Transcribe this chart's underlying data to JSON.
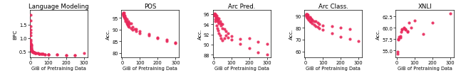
{
  "panels": [
    {
      "title": "Language Modeling",
      "ylabel": "BPC",
      "xlabel": "GiB of Pretraining Data",
      "xlim": [
        -5,
        320
      ],
      "ylim": [
        0.28,
        2.05
      ],
      "yticks": [
        0.5,
        1.0,
        1.5
      ],
      "xticks": [
        0,
        100,
        200,
        300
      ],
      "x": [
        1,
        1,
        1,
        1,
        2,
        2,
        3,
        4,
        5,
        6,
        8,
        10,
        12,
        15,
        20,
        25,
        30,
        40,
        50,
        60,
        70,
        80,
        100,
        150,
        200,
        250,
        300,
        2,
        3,
        5,
        7,
        10,
        15,
        20,
        30,
        40,
        50,
        60,
        80,
        100,
        150,
        200,
        250,
        1,
        1,
        2,
        3,
        5,
        8,
        12,
        20,
        30,
        50,
        70,
        100
      ],
      "y": [
        1.85,
        1.65,
        1.45,
        1.2,
        0.95,
        0.82,
        0.72,
        0.63,
        0.58,
        0.54,
        0.51,
        0.49,
        0.48,
        0.47,
        0.46,
        0.45,
        0.44,
        0.43,
        0.42,
        0.41,
        0.41,
        0.4,
        0.39,
        0.38,
        0.37,
        0.37,
        0.45,
        0.78,
        0.68,
        0.55,
        0.52,
        0.5,
        0.47,
        0.46,
        0.44,
        0.43,
        0.42,
        0.41,
        0.4,
        0.39,
        0.38,
        0.37,
        0.37,
        1.1,
        1.3,
        0.88,
        0.75,
        0.6,
        0.53,
        0.49,
        0.46,
        0.44,
        0.42,
        0.41,
        0.4
      ]
    },
    {
      "title": "POS",
      "ylabel": "Acc.",
      "xlabel": "GiB of Pretraining Data",
      "xlim": [
        -5,
        320
      ],
      "ylim": [
        78,
        98.5
      ],
      "yticks": [
        80,
        85,
        90,
        95
      ],
      "xticks": [
        0,
        100,
        200,
        300
      ],
      "x": [
        5,
        5,
        5,
        8,
        8,
        10,
        10,
        12,
        15,
        15,
        20,
        20,
        25,
        25,
        30,
        35,
        40,
        40,
        50,
        60,
        70,
        80,
        100,
        150,
        200,
        250,
        300,
        5,
        8,
        10,
        15,
        20,
        25,
        30,
        35,
        40,
        50,
        60,
        80,
        100,
        150,
        200,
        250,
        300
      ],
      "y": [
        97.2,
        96.8,
        96.3,
        97.0,
        96.6,
        97.1,
        96.2,
        95.8,
        95.3,
        96.1,
        95.1,
        94.2,
        94.6,
        93.2,
        92.3,
        93.6,
        93.1,
        92.2,
        92.6,
        91.2,
        90.3,
        90.1,
        89.2,
        88.1,
        86.2,
        85.1,
        84.0,
        96.5,
        96.0,
        95.5,
        94.8,
        93.5,
        92.8,
        92.0,
        91.5,
        91.0,
        90.5,
        89.8,
        89.2,
        88.5,
        87.5,
        86.5,
        85.5,
        84.5
      ]
    },
    {
      "title": "Arc Pred.",
      "ylabel": "Acc.",
      "xlabel": "GiB of Pretraining Data",
      "xlim": [
        -5,
        320
      ],
      "ylim": [
        87.5,
        96.8
      ],
      "yticks": [
        88,
        90,
        92,
        94,
        96
      ],
      "xticks": [
        0,
        100,
        200,
        300
      ],
      "x": [
        5,
        5,
        8,
        8,
        10,
        10,
        12,
        15,
        15,
        20,
        20,
        25,
        25,
        30,
        30,
        35,
        40,
        40,
        50,
        50,
        60,
        70,
        80,
        100,
        150,
        200,
        250,
        300,
        5,
        8,
        10,
        15,
        20,
        25,
        30,
        35,
        40,
        50,
        60,
        70,
        80,
        100,
        150,
        200,
        250,
        300
      ],
      "y": [
        96.1,
        95.8,
        95.9,
        95.6,
        96.0,
        95.7,
        95.4,
        95.1,
        95.6,
        95.2,
        94.7,
        94.9,
        94.4,
        94.1,
        95.1,
        94.6,
        94.2,
        93.7,
        94.0,
        93.2,
        93.1,
        92.6,
        92.2,
        91.6,
        91.1,
        91.2,
        90.6,
        90.1,
        95.6,
        95.0,
        94.6,
        93.8,
        93.2,
        92.7,
        92.2,
        91.8,
        91.3,
        90.8,
        91.3,
        91.8,
        91.4,
        91.0,
        90.2,
        89.3,
        88.5,
        88.0
      ]
    },
    {
      "title": "Arc Class.",
      "ylabel": "Acc.",
      "xlabel": "GiB of Pretraining Data",
      "xlim": [
        -5,
        320
      ],
      "ylim": [
        55,
        95
      ],
      "yticks": [
        60,
        70,
        80,
        90
      ],
      "xticks": [
        0,
        100,
        200,
        300
      ],
      "x": [
        5,
        5,
        8,
        8,
        10,
        10,
        12,
        15,
        15,
        20,
        20,
        25,
        25,
        30,
        35,
        40,
        40,
        50,
        60,
        70,
        80,
        100,
        150,
        200,
        250,
        300,
        5,
        8,
        10,
        15,
        20,
        25,
        30,
        40,
        50,
        60,
        70,
        80,
        100,
        150,
        200,
        250
      ],
      "y": [
        91.2,
        90.3,
        91.5,
        91.0,
        90.8,
        91.2,
        90.1,
        89.2,
        90.6,
        89.1,
        88.6,
        88.2,
        89.1,
        87.6,
        87.1,
        86.6,
        86.1,
        85.6,
        85.1,
        84.2,
        83.1,
        82.0,
        81.0,
        80.1,
        79.1,
        68.5,
        90.5,
        89.8,
        88.5,
        87.5,
        86.5,
        85.5,
        84.5,
        83.5,
        82.5,
        81.5,
        80.5,
        79.5,
        78.5,
        75.5,
        72.5,
        70.5
      ]
    },
    {
      "title": "XNLI",
      "ylabel": "Acc.",
      "xlabel": "GiB of Pretraining Data",
      "xlim": [
        -5,
        320
      ],
      "ylim": [
        53.5,
        64.0
      ],
      "yticks": [
        55.0,
        57.5,
        60.0,
        62.5
      ],
      "xticks": [
        0,
        100,
        200,
        300
      ],
      "x": [
        5,
        5,
        10,
        15,
        20,
        25,
        30,
        40,
        50,
        60,
        70,
        80,
        100,
        150,
        200,
        300,
        10,
        20,
        30,
        40,
        50,
        60
      ],
      "y": [
        54.3,
        54.8,
        57.4,
        58.1,
        57.9,
        59.1,
        59.6,
        59.9,
        59.6,
        59.1,
        61.2,
        60.1,
        61.6,
        58.6,
        61.1,
        63.2,
        57.6,
        58.2,
        59.7,
        60.0,
        59.8,
        59.3
      ]
    }
  ],
  "dot_color": "#e8285a",
  "dot_size": 9,
  "fig_width": 6.4,
  "fig_height": 1.14,
  "dpi": 100
}
